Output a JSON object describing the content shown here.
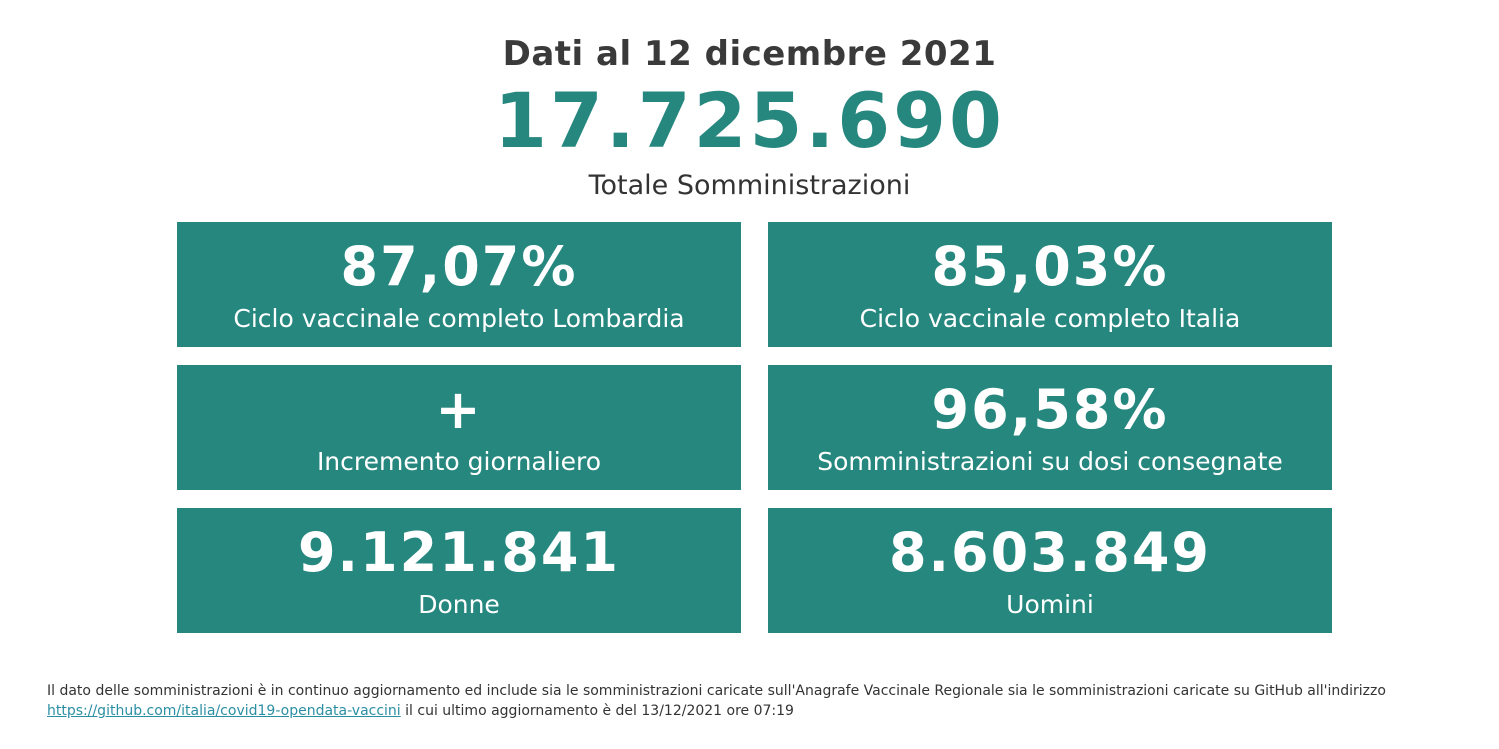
{
  "header": {
    "date_title": "Dati al 12 dicembre 2021",
    "total_value": "17.725.690",
    "total_label": "Totale Somministrazioni"
  },
  "cards": [
    {
      "value": "87,07%",
      "label": "Ciclo vaccinale completo Lombardia"
    },
    {
      "value": "85,03%",
      "label": "Ciclo vaccinale completo Italia"
    },
    {
      "value": "+",
      "label": "Incremento giornaliero"
    },
    {
      "value": "96,58%",
      "label": "Somministrazioni su dosi consegnate"
    },
    {
      "value": "9.121.841",
      "label": "Donne"
    },
    {
      "value": "8.603.849",
      "label": "Uomini"
    }
  ],
  "footer": {
    "text_1": "Il dato delle somministrazioni è in continuo aggiornamento ed include sia le somministrazioni caricate sull'Anagrafe Vaccinale Regionale sia le somministrazioni caricate su GitHub all'indirizzo",
    "link": "https://github.com/italia/covid19-opendata-vaccini",
    "text_2": " il cui ultimo aggiornamento è del 13/12/2021 ore 07:19"
  },
  "colors": {
    "accent": "#26877f",
    "link": "#2b8fa3",
    "text": "#333333"
  }
}
